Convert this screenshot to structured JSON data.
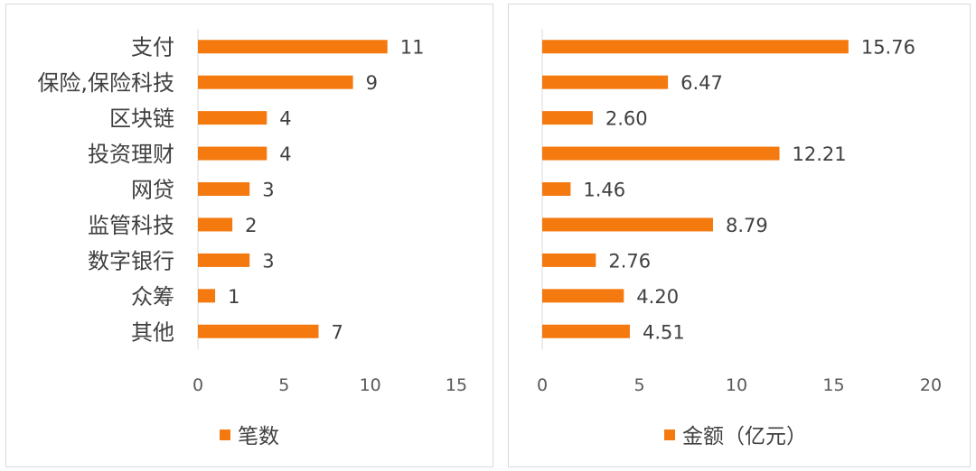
{
  "colors": {
    "bar": "#f47a0f",
    "text": "#404040",
    "tick": "#595959",
    "axis": "#d9d9d9"
  },
  "chart_data": [
    {
      "type": "bar",
      "orientation": "horizontal",
      "categories": [
        "支付",
        "保险,保险科技",
        "区块链",
        "投资理财",
        "网贷",
        "监管科技",
        "数字银行",
        "众筹",
        "其他"
      ],
      "series": [
        {
          "name": "笔数",
          "values": [
            11,
            9,
            4,
            4,
            3,
            2,
            3,
            1,
            7
          ]
        }
      ],
      "value_labels": [
        "11",
        "9",
        "4",
        "4",
        "3",
        "2",
        "3",
        "1",
        "7"
      ],
      "xlim": [
        0,
        15
      ],
      "xticks": [
        "0",
        "5",
        "10",
        "15"
      ],
      "legend": "bottom",
      "grid": false
    },
    {
      "type": "bar",
      "orientation": "horizontal",
      "categories": [
        "支付",
        "保险,保险科技",
        "区块链",
        "投资理财",
        "网贷",
        "监管科技",
        "数字银行",
        "众筹",
        "其他"
      ],
      "series": [
        {
          "name": "金额（亿元）",
          "values": [
            15.76,
            6.47,
            2.6,
            12.21,
            1.46,
            8.79,
            2.76,
            4.2,
            4.51
          ]
        }
      ],
      "value_labels": [
        "15.76",
        "6.47",
        "2.60",
        "12.21",
        "1.46",
        "8.79",
        "2.76",
        "4.20",
        "4.51"
      ],
      "xlim": [
        0,
        20
      ],
      "xticks": [
        "0",
        "5",
        "10",
        "15",
        "20"
      ],
      "legend": "bottom",
      "grid": false
    }
  ]
}
